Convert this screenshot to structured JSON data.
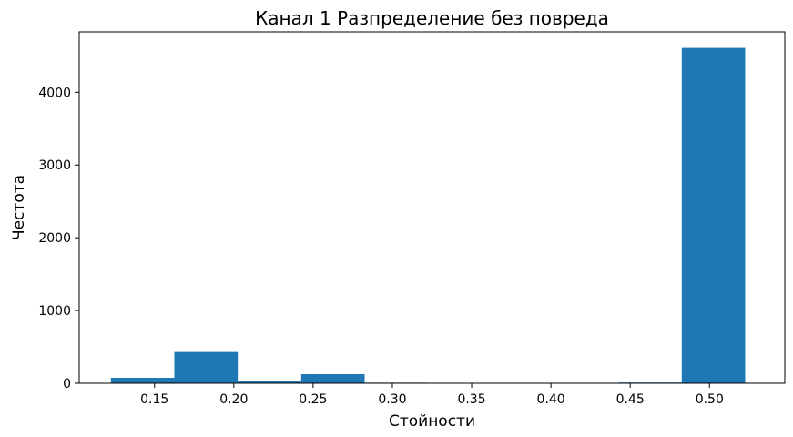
{
  "chart_data": {
    "type": "bar",
    "title": "Канал 1 Разпределение без повреда",
    "xlabel": "Стойности",
    "ylabel": "Честота",
    "xlim": [
      0.1025,
      0.5475
    ],
    "ylim": [
      0,
      4830
    ],
    "x_ticks": [
      "0.15",
      "0.20",
      "0.25",
      "0.30",
      "0.35",
      "0.40",
      "0.45",
      "0.50"
    ],
    "y_ticks": [
      "0",
      "1000",
      "2000",
      "3000",
      "4000"
    ],
    "bar_color": "#1f77b4",
    "bins": [
      {
        "start": 0.1225,
        "end": 0.1625,
        "value": 75
      },
      {
        "start": 0.1625,
        "end": 0.2025,
        "value": 430
      },
      {
        "start": 0.2025,
        "end": 0.2425,
        "value": 30
      },
      {
        "start": 0.2425,
        "end": 0.2825,
        "value": 125
      },
      {
        "start": 0.2825,
        "end": 0.3225,
        "value": 8
      },
      {
        "start": 0.3225,
        "end": 0.3625,
        "value": 2
      },
      {
        "start": 0.3625,
        "end": 0.4025,
        "value": 2
      },
      {
        "start": 0.4025,
        "end": 0.4425,
        "value": 6
      },
      {
        "start": 0.4425,
        "end": 0.4825,
        "value": 10
      },
      {
        "start": 0.4825,
        "end": 0.5225,
        "value": 4610
      }
    ]
  }
}
